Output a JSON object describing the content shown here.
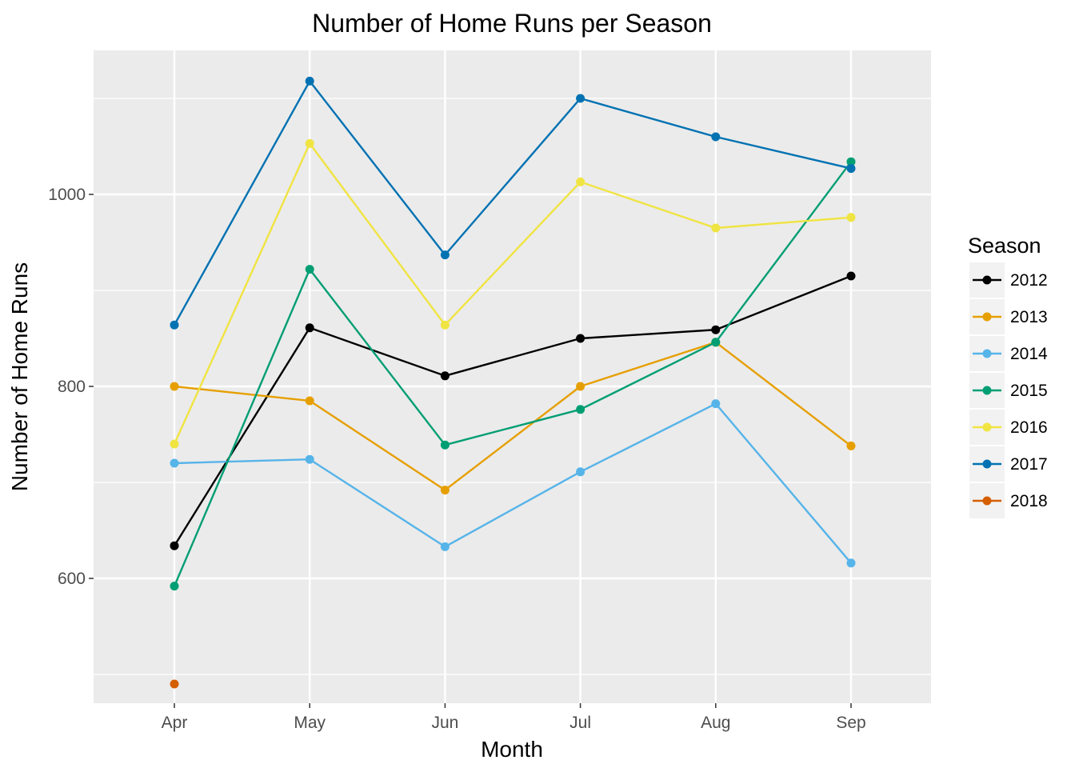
{
  "chart_data": {
    "type": "line",
    "title": "Number of Home Runs per Season",
    "xlabel": "Month",
    "ylabel": "Number of Home Runs",
    "categories": [
      "Apr",
      "May",
      "Jun",
      "Jul",
      "Aug",
      "Sep"
    ],
    "ylim": [
      470,
      1150
    ],
    "y_ticks": [
      600,
      800,
      1000
    ],
    "y_tick_labels": [
      "600",
      "800",
      "1000"
    ],
    "grid": true,
    "legend": {
      "title": "Season",
      "position": "right"
    },
    "series": [
      {
        "name": "2012",
        "color": "#000000",
        "values": [
          634,
          861,
          811,
          850,
          859,
          915
        ]
      },
      {
        "name": "2013",
        "color": "#E69F00",
        "values": [
          800,
          785,
          692,
          800,
          846,
          738
        ]
      },
      {
        "name": "2014",
        "color": "#56B4E9",
        "values": [
          720,
          724,
          633,
          711,
          782,
          616
        ]
      },
      {
        "name": "2015",
        "color": "#009E73",
        "values": [
          592,
          922,
          739,
          776,
          846,
          1034
        ]
      },
      {
        "name": "2016",
        "color": "#F0E442",
        "values": [
          740,
          1053,
          864,
          1013,
          965,
          976
        ]
      },
      {
        "name": "2017",
        "color": "#0072B2",
        "values": [
          864,
          1118,
          937,
          1100,
          1060,
          1027
        ]
      },
      {
        "name": "2018",
        "color": "#D55E00",
        "values": [
          490,
          null,
          null,
          null,
          null,
          null
        ]
      }
    ]
  }
}
